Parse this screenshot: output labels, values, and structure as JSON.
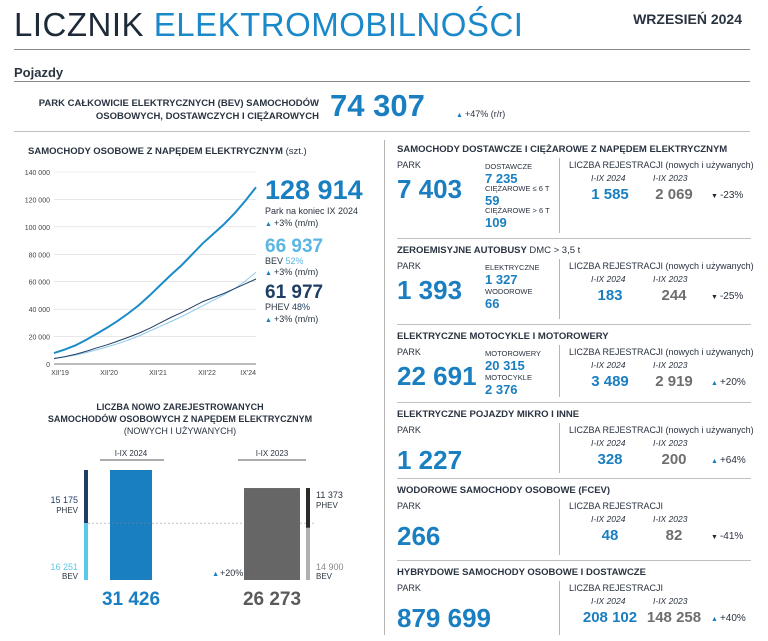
{
  "header": {
    "title_part1": "LICZNIK",
    "title_part2": "ELEKTROMOBILNOŚCI",
    "date": "WRZESIEŃ 2024"
  },
  "section": {
    "label": "Pojazdy"
  },
  "kpi": {
    "label_line1": "PARK CAŁKOWICIE ELEKTRYCZNYCH (BEV) SAMOCHODÓW",
    "label_line2": "OSOBOWYCH, DOSTAWCZYCH I CIĘŻAROWYCH",
    "value": "74 307",
    "change": "+47% (r/r)"
  },
  "passenger": {
    "title": "SAMOCHODY OSOBOWE Z NAPĘDEM ELEKTRYCZNYM",
    "unit": "(szt.)",
    "total": "128 914",
    "total_label": "Park na koniec IX 2024",
    "total_change": "+3% (m/m)",
    "bev_value": "66 937",
    "bev_label": "BEV",
    "bev_share": "52%",
    "bev_change": "+3% (m/m)",
    "phev_value": "61 977",
    "phev_label": "PHEV",
    "phev_share": "48%",
    "phev_change": "+3% (m/m)"
  },
  "chart_data": [
    {
      "type": "line",
      "title": "SAMOCHODY OSOBOWE Z NAPĘDEM ELEKTRYCZNYM (szt.)",
      "x_ticks": [
        "XII'19",
        "XII'20",
        "XII'21",
        "XII'22",
        "IX'24"
      ],
      "ylim": [
        0,
        140000
      ],
      "y_ticks": [
        "0",
        "20 000",
        "40 000",
        "60 000",
        "80 000",
        "100 000",
        "120 000",
        "140 000"
      ],
      "grid": true,
      "colors": {
        "total": "#1a8cc8",
        "bev": "#8cc8ea",
        "phev": "#1f3e64"
      },
      "x": [
        0,
        3,
        6,
        9,
        12,
        15,
        18,
        21,
        24,
        27,
        30,
        33,
        36,
        39,
        42,
        45,
        48,
        51,
        54,
        57
      ],
      "series": [
        {
          "name": "total",
          "values": [
            8000,
            10500,
            13500,
            17500,
            22000,
            26500,
            31500,
            37000,
            43000,
            50000,
            57500,
            65000,
            72000,
            80000,
            88000,
            95000,
            102000,
            110000,
            119000,
            128914
          ]
        },
        {
          "name": "BEV",
          "values": [
            4000,
            5200,
            6500,
            8300,
            10300,
            12500,
            14800,
            17500,
            20500,
            24000,
            27500,
            31000,
            34500,
            38500,
            42500,
            46500,
            50500,
            55000,
            60500,
            66937
          ]
        },
        {
          "name": "PHEV",
          "values": [
            4000,
            5300,
            7000,
            9200,
            11700,
            14000,
            16700,
            19500,
            22500,
            26000,
            30000,
            34000,
            37500,
            41500,
            45500,
            48500,
            51500,
            55000,
            58500,
            61977
          ]
        }
      ]
    },
    {
      "type": "bar",
      "title": "LICZBA NOWO ZAREJESTROWANYCH SAMOCHODÓW OSOBOWYCH Z NAPĘDEM ELEKTRYCZNYM (NOWYCH I UŻYWANYCH)",
      "categories": [
        "I-IX 2024",
        "I-IX 2023"
      ],
      "series": [
        {
          "name": "BEV",
          "values": [
            16251,
            14900
          ]
        },
        {
          "name": "PHEV",
          "values": [
            15175,
            11373
          ]
        }
      ],
      "totals": [
        31426,
        26273
      ],
      "change": "+20%"
    }
  ],
  "bars": {
    "title_line1": "LICZBA NOWO ZAREJESTROWANYCH",
    "title_line2": "SAMOCHODÓW OSOBOWYCH Z NAPĘDEM ELEKTRYCZNYM",
    "title_line3": "(NOWYCH I UŻYWANYCH)",
    "col1_label": "I-IX 2024",
    "col2_label": "I-IX 2023",
    "col1_phev": "15 175",
    "col1_bev": "16 251",
    "col2_phev": "11 373",
    "col2_bev": "14 900",
    "phev_label": "PHEV",
    "bev_label": "BEV",
    "col1_total": "31 426",
    "col2_total": "26 273",
    "change": "+20%"
  },
  "blocks": [
    {
      "title": "SAMOCHODY DOSTAWCZE I CIĘŻAROWE Z NAPĘDEM ELEKTRYCZNYM",
      "park_label": "PARK",
      "park": "7 403",
      "subs": [
        {
          "label": "DOSTAWCZE",
          "value": "7 235"
        },
        {
          "label": "CIĘŻAROWE ≤ 6 t",
          "value": "59"
        },
        {
          "label": "CIĘŻAROWE > 6 t",
          "value": "109"
        }
      ],
      "reg_label": "LICZBA REJESTRACJI",
      "reg_suffix": "(nowych i używanych)",
      "year_a": "I-IX 2024",
      "year_b": "I-IX 2023",
      "reg_a": "1 585",
      "reg_b": "2 069",
      "change": "-23%",
      "dir": "down"
    },
    {
      "title": "ZEROEMISYJNE AUTOBUSY",
      "title_suffix": "DMC > 3,5 t",
      "park_label": "PARK",
      "park": "1 393",
      "subs": [
        {
          "label": "ELEKTRYCZNE",
          "value": "1 327"
        },
        {
          "label": "WODOROWE",
          "value": "66"
        }
      ],
      "reg_label": "LICZBA REJESTRACJI",
      "reg_suffix": "(nowych i używanych)",
      "year_a": "I-IX 2024",
      "year_b": "I-IX 2023",
      "reg_a": "183",
      "reg_b": "244",
      "change": "-25%",
      "dir": "down"
    },
    {
      "title": "ELEKTRYCZNE MOTOCYKLE I MOTOROWERY",
      "park_label": "PARK",
      "park": "22 691",
      "subs": [
        {
          "label": "MOTOROWERY",
          "value": "20 315"
        },
        {
          "label": "MOTOCYKLE",
          "value": "2 376"
        }
      ],
      "reg_label": "LICZBA REJESTRACJI",
      "reg_suffix": "(nowych i używanych)",
      "year_a": "I-IX 2024",
      "year_b": "I-IX 2023",
      "reg_a": "3 489",
      "reg_b": "2 919",
      "change": "+20%",
      "dir": "up"
    },
    {
      "title": "ELEKTRYCZNE POJAZDY MIKRO I INNE",
      "park_label": "PARK",
      "park": "1 227",
      "reg_label": "LICZBA REJESTRACJI",
      "reg_suffix": "(nowych i używanych)",
      "year_a": "I-IX 2024",
      "year_b": "I-IX 2023",
      "reg_a": "328",
      "reg_b": "200",
      "change": "+64%",
      "dir": "up"
    },
    {
      "title": "WODOROWE SAMOCHODY OSOBOWE (FCEV)",
      "park_label": "PARK",
      "park": "266",
      "reg_label": "LICZBA REJESTRACJI",
      "year_a": "I-IX 2024",
      "year_b": "I-IX 2023",
      "reg_a": "48",
      "reg_b": "82",
      "change": "-41%",
      "dir": "down"
    },
    {
      "title": "HYBRYDOWE SAMOCHODY OSOBOWE I DOSTAWCZE",
      "park_label": "PARK",
      "park": "879 699",
      "reg_label": "LICZBA REJESTRACJI",
      "year_a": "I-IX 2024",
      "year_b": "I-IX 2023",
      "reg_a": "208 102",
      "reg_b": "148 258",
      "change": "+40%",
      "dir": "up"
    }
  ]
}
